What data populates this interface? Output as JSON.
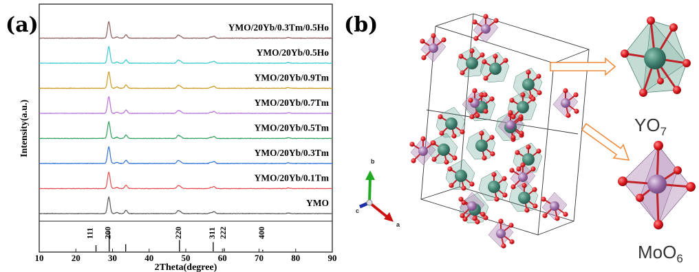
{
  "figure": {
    "panel_a_label": "(a)",
    "panel_b_label": "(b)"
  },
  "chart_data": {
    "type": "line",
    "xlabel": "2Theta(degree)",
    "ylabel": "Intensity(a.u.)",
    "xlim": [
      10,
      90
    ],
    "x_ticks": [
      10,
      20,
      30,
      40,
      50,
      60,
      70,
      80,
      90
    ],
    "grid": false,
    "series": [
      {
        "name": "YMO",
        "color": "#555555"
      },
      {
        "name": "YMO/20Yb/0.1Tm",
        "color": "#e8494a"
      },
      {
        "name": "YMO/20Yb/0.3Tm",
        "color": "#2f6fd6"
      },
      {
        "name": "YMO/20Yb/0.5Tm",
        "color": "#2e9e5b"
      },
      {
        "name": "YMO/20Yb/0.7Tm",
        "color": "#b86fd9"
      },
      {
        "name": "YMO/20Yb/0.9Tm",
        "color": "#c9981e"
      },
      {
        "name": "YMO/20Yb/0.5Ho",
        "color": "#36c9cf"
      },
      {
        "name": "YMO/20Yb/0.3Tm/0.5Ho",
        "color": "#8a5a5a"
      }
    ],
    "peaks": [
      {
        "two_theta": 29.0,
        "relative_intensity": 1.0
      },
      {
        "two_theta": 31.2,
        "relative_intensity": 0.07
      },
      {
        "two_theta": 33.7,
        "relative_intensity": 0.2
      },
      {
        "two_theta": 47.9,
        "relative_intensity": 0.17
      },
      {
        "two_theta": 48.6,
        "relative_intensity": 0.1
      },
      {
        "two_theta": 56.8,
        "relative_intensity": 0.06
      },
      {
        "two_theta": 57.7,
        "relative_intensity": 0.12
      },
      {
        "two_theta": 78.0,
        "relative_intensity": 0.04
      }
    ],
    "reference_reflections": [
      {
        "hkl": "111",
        "two_theta": 25.5,
        "relative_intensity": 0.3
      },
      {
        "hkl": "200",
        "two_theta": 29.1,
        "relative_intensity": 1.0
      },
      {
        "hkl": "",
        "two_theta": 33.6,
        "relative_intensity": 0.35
      },
      {
        "hkl": "220",
        "two_theta": 48.3,
        "relative_intensity": 0.55
      },
      {
        "hkl": "311",
        "two_theta": 57.5,
        "relative_intensity": 0.45
      },
      {
        "hkl": "222",
        "two_theta": 60.5,
        "relative_intensity": 0.15
      },
      {
        "hkl": "400",
        "two_theta": 71.0,
        "relative_intensity": 0.08
      }
    ]
  },
  "structure": {
    "polyhedra": [
      {
        "label": "YO",
        "subscript": "7",
        "color": "#5a9a88"
      },
      {
        "label": "MoO",
        "subscript": "6",
        "color": "#b48cb8"
      }
    ],
    "crystal_axes": [
      "a",
      "b",
      "c"
    ]
  }
}
